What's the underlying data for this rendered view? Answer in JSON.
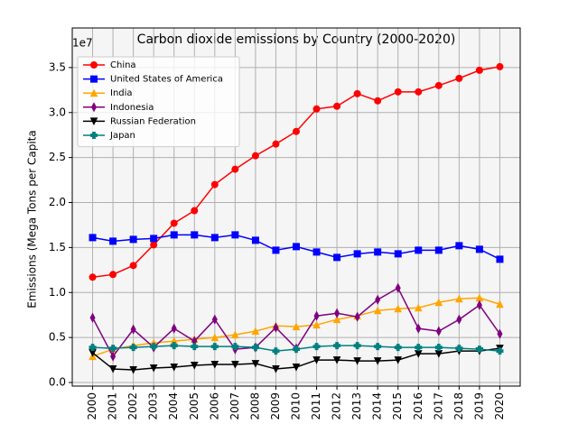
{
  "chart_data": {
    "type": "line",
    "title": "Carbon dioxide emissions by Country (2000-2020)",
    "y_label": "Emissions (Mega Tons per Capita",
    "offset_label": "1e7",
    "x": [
      2000,
      2001,
      2002,
      2003,
      2004,
      2005,
      2006,
      2007,
      2008,
      2009,
      2010,
      2011,
      2012,
      2013,
      2014,
      2015,
      2016,
      2017,
      2018,
      2019,
      2020
    ],
    "xlim": [
      1999,
      2021
    ],
    "xticks": [
      2000,
      2001,
      2002,
      2003,
      2004,
      2005,
      2006,
      2007,
      2008,
      2009,
      2010,
      2011,
      2012,
      2013,
      2014,
      2015,
      2016,
      2017,
      2018,
      2019,
      2020
    ],
    "ylim": [
      -0.04,
      3.94
    ],
    "yticks": [
      {
        "value": 0,
        "label": "0.0"
      },
      0.5,
      {
        "value": 1,
        "label": "1.0"
      },
      1.5,
      {
        "value": 2,
        "label": "2.0"
      },
      2.5,
      {
        "value": 3,
        "label": "3.0"
      },
      3.5
    ],
    "grid": true,
    "legend": "upper-left",
    "series": [
      {
        "name": "China",
        "color": "#ff0000",
        "marker": "circle",
        "values": [
          1.17,
          1.2,
          1.3,
          1.53,
          1.77,
          1.91,
          2.2,
          2.37,
          2.52,
          2.65,
          2.79,
          3.04,
          3.07,
          3.21,
          3.13,
          3.23,
          3.23,
          3.3,
          3.38,
          3.47,
          3.51
        ]
      },
      {
        "name": "United States of America",
        "color": "#0000ff",
        "marker": "square",
        "values": [
          1.61,
          1.57,
          1.59,
          1.6,
          1.64,
          1.64,
          1.61,
          1.64,
          1.58,
          1.47,
          1.51,
          1.45,
          1.39,
          1.43,
          1.45,
          1.43,
          1.47,
          1.47,
          1.52,
          1.48,
          1.37
        ]
      },
      {
        "name": "India",
        "color": "#ffa500",
        "marker": "triangle-up",
        "values": [
          0.29,
          0.37,
          0.41,
          0.44,
          0.46,
          0.48,
          0.5,
          0.53,
          0.57,
          0.63,
          0.62,
          0.64,
          0.7,
          0.74,
          0.8,
          0.82,
          0.83,
          0.89,
          0.93,
          0.94,
          0.87
        ]
      },
      {
        "name": "Indonesia",
        "color": "#800080",
        "marker": "thin-diamond",
        "values": [
          0.72,
          0.29,
          0.59,
          0.39,
          0.6,
          0.46,
          0.7,
          0.37,
          0.39,
          0.61,
          0.38,
          0.74,
          0.77,
          0.73,
          0.92,
          1.05,
          0.6,
          0.57,
          0.7,
          0.86,
          0.54
        ]
      },
      {
        "name": "Russian Federation",
        "color": "#000000",
        "marker": "triangle-down",
        "values": [
          0.33,
          0.15,
          0.14,
          0.16,
          0.17,
          0.19,
          0.2,
          0.2,
          0.21,
          0.15,
          0.17,
          0.25,
          0.25,
          0.24,
          0.24,
          0.25,
          0.32,
          0.32,
          0.35,
          0.35,
          0.38
        ]
      },
      {
        "name": "Japan",
        "color": "#008080",
        "marker": "plus",
        "values": [
          0.39,
          0.38,
          0.39,
          0.4,
          0.41,
          0.4,
          0.4,
          0.4,
          0.39,
          0.35,
          0.37,
          0.4,
          0.41,
          0.41,
          0.4,
          0.39,
          0.39,
          0.39,
          0.38,
          0.37,
          0.35
        ]
      }
    ]
  }
}
